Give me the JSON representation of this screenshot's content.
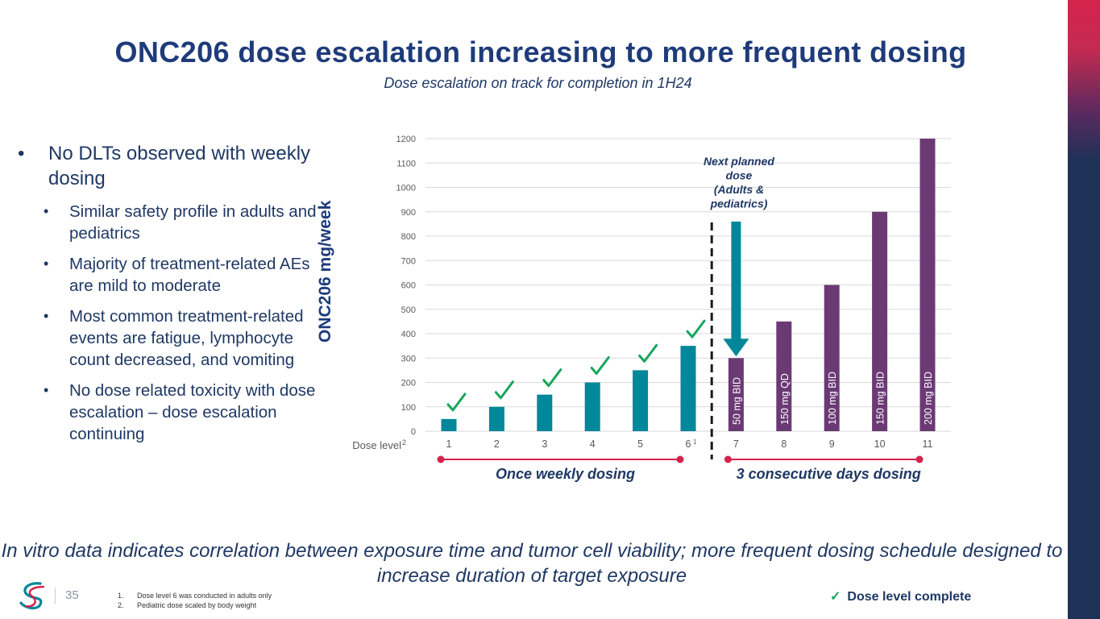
{
  "title": "ONC206 dose escalation increasing to more frequent dosing",
  "subtitle": "Dose escalation on track for completion in 1H24",
  "bullets": {
    "main": "No DLTs observed with weekly dosing",
    "sub": [
      "Similar safety profile in adults and pediatrics",
      "Majority of treatment-related AEs are mild to moderate",
      "Most common treatment-related events are fatigue, lymphocyte count decreased, and vomiting",
      "No dose related toxicity with dose escalation – dose escalation continuing"
    ]
  },
  "chart_data": {
    "type": "bar",
    "ylabel": "ONC206 mg/week",
    "xlabel": "Dose level",
    "xlabel_superscript": "2",
    "ylim": [
      0,
      1200
    ],
    "yticks": [
      0,
      100,
      200,
      300,
      400,
      500,
      600,
      700,
      800,
      900,
      1000,
      1100,
      1200
    ],
    "grid": true,
    "categories": [
      "1",
      "2",
      "3",
      "4",
      "5",
      "6",
      "7",
      "8",
      "9",
      "10",
      "11"
    ],
    "category_superscripts": {
      "6": "1"
    },
    "series": [
      {
        "name": "Once weekly dosing",
        "color": "#00879a",
        "values": [
          50,
          100,
          150,
          200,
          250,
          350,
          null,
          null,
          null,
          null,
          null
        ]
      },
      {
        "name": "3 consecutive days dosing",
        "color": "#6b3a75",
        "values": [
          null,
          null,
          null,
          null,
          null,
          null,
          300,
          450,
          600,
          900,
          1200
        ]
      }
    ],
    "completed_levels": [
      "1",
      "2",
      "3",
      "4",
      "5",
      "6"
    ],
    "bar_labels": {
      "7": "50 mg BID",
      "8": "150 mg QD",
      "9": "100 mg BID",
      "10": "150 mg BID",
      "11": "200 mg BID"
    },
    "annotation": {
      "text": [
        "Next planned",
        "dose",
        "(Adults &",
        "pediatrics)"
      ],
      "arrow_from": 860,
      "arrow_to": 300,
      "level": "7"
    },
    "groups": [
      {
        "label": "Once weekly dosing",
        "from": "1",
        "to": "6"
      },
      {
        "label": "3 consecutive days dosing",
        "from": "7",
        "to": "11"
      }
    ]
  },
  "colors": {
    "teal": "#00879a",
    "purple": "#6b3a75",
    "check": "#17a65b",
    "group_line": "#d4234d",
    "navy": "#1f3864"
  },
  "footer_text": "In vitro data indicates correlation between exposure time and tumor cell viability; more frequent dosing schedule designed to increase duration of target exposure",
  "page_number": "35",
  "notes": [
    {
      "num": "1.",
      "text": "Dose level 6 was conducted in adults only"
    },
    {
      "num": "2.",
      "text": "Pediatric dose scaled by body weight"
    }
  ],
  "legend": {
    "check_glyph": "✓",
    "label": "Dose level complete"
  }
}
